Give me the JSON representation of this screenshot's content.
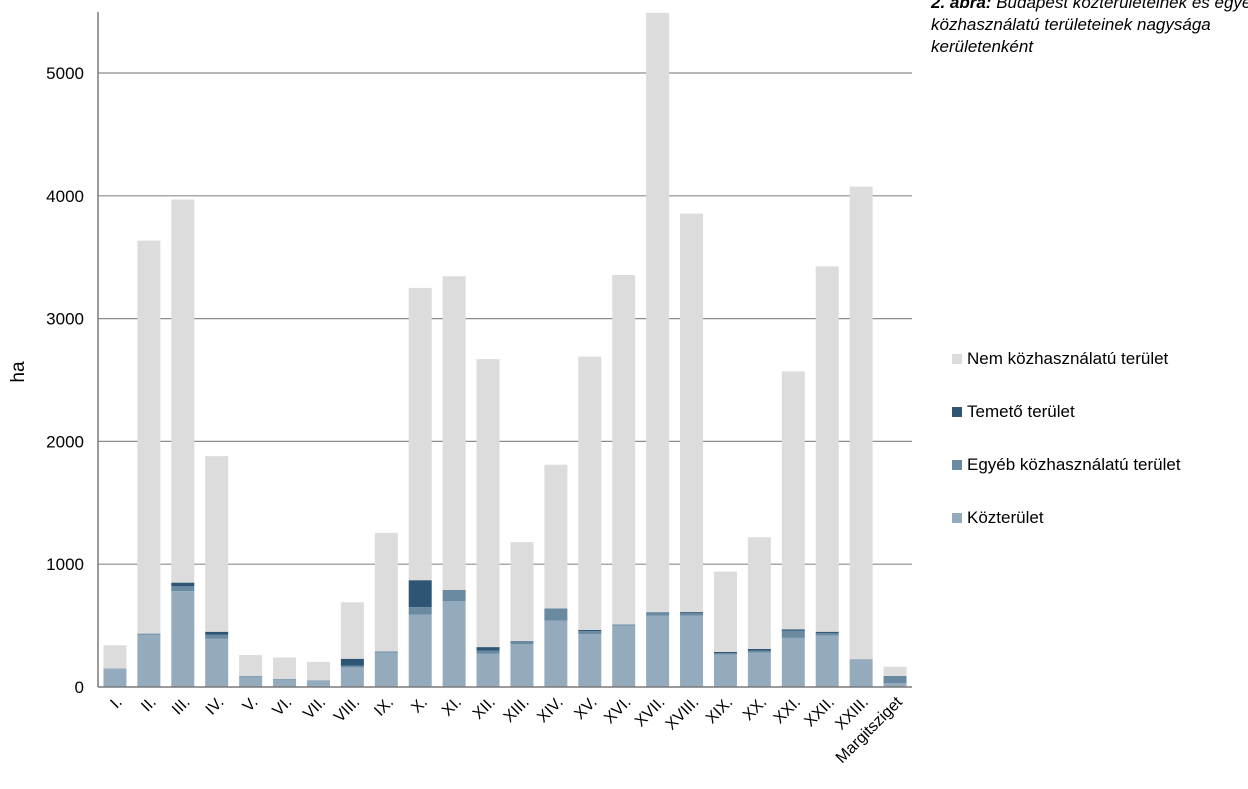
{
  "caption": {
    "number": "2. ábra:",
    "text": "Budapest közterületeinek és egyéb közhasználatú területeinek nagysága kerületenként"
  },
  "colors": {
    "kozterulet": "#93abbc",
    "egyeb": "#6a8aa1",
    "temeto": "#2e5674",
    "nem": "#dcdcdc",
    "grid": "#8c8c8c"
  },
  "chart_data": {
    "type": "bar",
    "stacked": true,
    "ylabel": "ha",
    "xlabel": "",
    "ylim": [
      0,
      5500
    ],
    "yticks": [
      0,
      1000,
      2000,
      3000,
      4000,
      5000
    ],
    "grid": true,
    "legend_position": "right",
    "categories": [
      "I.",
      "II.",
      "III.",
      "IV.",
      "V.",
      "VI.",
      "VII.",
      "VIII.",
      "IX.",
      "X.",
      "XI.",
      "XII.",
      "XIII.",
      "XIV.",
      "XV.",
      "XVI.",
      "XVII.",
      "XVIII.",
      "XIX.",
      "XX.",
      "XXI.",
      "XXII.",
      "XXIII.",
      "Margitsziget"
    ],
    "series": [
      {
        "name": "Közterület",
        "color_key": "kozterulet",
        "values": [
          145,
          425,
          780,
          395,
          85,
          60,
          50,
          160,
          280,
          590,
          700,
          270,
          350,
          540,
          430,
          500,
          580,
          580,
          265,
          280,
          400,
          420,
          220,
          30
        ]
      },
      {
        "name": "Egyéb közhasználatú terület",
        "color_key": "egyeb",
        "values": [
          5,
          10,
          40,
          30,
          5,
          5,
          5,
          15,
          10,
          60,
          90,
          25,
          25,
          100,
          25,
          10,
          30,
          20,
          10,
          15,
          60,
          20,
          5,
          60
        ]
      },
      {
        "name": "Temető terület",
        "color_key": "temeto",
        "values": [
          0,
          0,
          30,
          25,
          0,
          0,
          0,
          55,
          0,
          220,
          0,
          30,
          0,
          0,
          10,
          0,
          0,
          10,
          10,
          15,
          10,
          10,
          0,
          0
        ]
      },
      {
        "name": "Nem közhasználatú terület",
        "color_key": "nem",
        "values": [
          190,
          3200,
          3120,
          1430,
          170,
          175,
          150,
          460,
          965,
          2380,
          2555,
          2345,
          805,
          1170,
          2225,
          2845,
          4880,
          3245,
          655,
          910,
          2100,
          2975,
          3850,
          75
        ]
      }
    ],
    "legend_order": [
      "Nem közhasználatú terület",
      "Temető terület",
      "Egyéb közhasználatú terület",
      "Közterület"
    ]
  }
}
